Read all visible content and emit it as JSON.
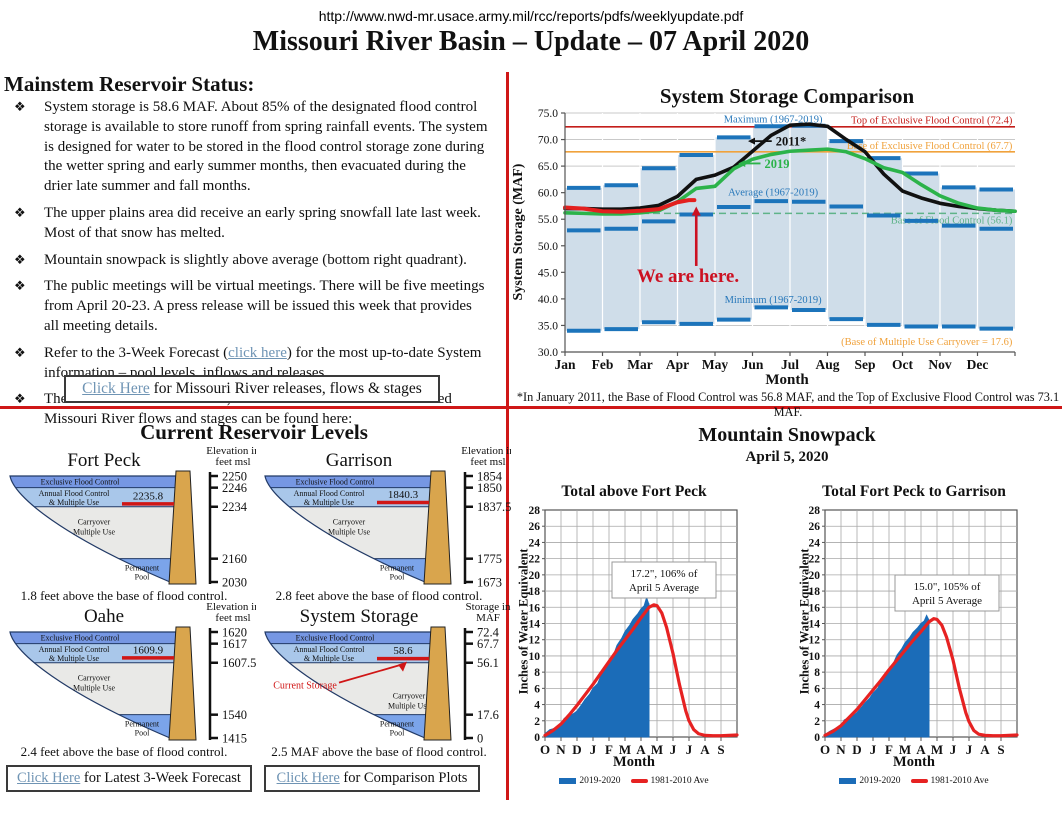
{
  "page": {
    "url": "http://www.nwd-mr.usace.army.mil/rcc/reports/pdfs/weeklyupdate.pdf",
    "title": "Missouri River Basin – Update – 07 April 2020"
  },
  "colors": {
    "divider_red": "#cf1717",
    "link_blue": "#6f94b4",
    "step_blue": "#1c74bb",
    "band_fill": "#cfdde9",
    "line_2011": "#111111",
    "line_2019": "#2cb34a",
    "line_2020": "#e3201f",
    "top_exclusive_red": "#c41e1a",
    "base_exclusive_orange": "#f0a23c",
    "base_flood_green": "#5fb389",
    "snow_blue": "#1b6cb8",
    "snow_red": "#e62222",
    "dam_tan": "#d9a54d"
  },
  "mainstem": {
    "heading": "Mainstem Reservoir Status:",
    "bullet_glyph": "❖",
    "bullets": [
      {
        "pre": "System storage is 58.6 MAF. About 85% of the designated flood control storage is available to store runoff from spring rainfall events. The system is designed for water to be stored in the flood control storage zone during the wetter spring and early summer months, then evacuated during the drier late summer and fall months.",
        "link": "",
        "post": ""
      },
      {
        "pre": "The upper plains area did receive an early spring snowfall late last week.  Most of that snow has melted.",
        "link": "",
        "post": ""
      },
      {
        "pre": "Mountain snowpack is slightly above average (bottom right quadrant).",
        "link": "",
        "post": ""
      },
      {
        "pre": "The public meetings will be virtual meetings.  There will be five meetings from April 20-23.  A press release will be issued this week that provides all meeting details.",
        "link": "",
        "post": ""
      },
      {
        "pre": "Refer to the 3-Week Forecast (",
        "link": "click here",
        "post": ") for the most up-to-date System information – pool levels, inflows and releases."
      },
      {
        "pre": "The Gavins Point release is 35,000 cfs. The schedule and forecasted Missouri River flows and stages can be found here:",
        "link": "",
        "post": ""
      }
    ],
    "release_box": {
      "link": "Click Here",
      "rest": " for Missouri River releases, flows & stages"
    }
  },
  "reservoir_section": {
    "heading": "Current Reservoir Levels",
    "zone_labels": [
      [
        "Exclusive Flood Control"
      ],
      [
        "Annual Flood Control",
        "& Multiple Use"
      ],
      [
        "Carryover",
        "Multiple Use"
      ],
      [
        "Permanent",
        "Pool"
      ]
    ],
    "reservoirs": [
      {
        "name": "Fort Peck",
        "scale_header": [
          "Elevation in",
          "feet msl"
        ],
        "ticks": [
          "2250",
          "2246",
          "2234",
          "2160",
          "2030"
        ],
        "tick_values": [
          2250,
          2246,
          2234,
          2160,
          2030
        ],
        "current_value": 2235.8,
        "current": "2235.8",
        "caption": "1.8 feet above the base of flood control."
      },
      {
        "name": "Garrison",
        "scale_header": [
          "Elevation in",
          "feet msl"
        ],
        "ticks": [
          "1854",
          "1850",
          "1837.5",
          "1775",
          "1673"
        ],
        "tick_values": [
          1854,
          1850,
          1837.5,
          1775,
          1673
        ],
        "current_value": 1840.3,
        "current": "1840.3",
        "caption": "2.8 feet above the base of flood control."
      },
      {
        "name": "Oahe",
        "scale_header": [
          "Elevation in",
          "feet msl"
        ],
        "ticks": [
          "1620",
          "1617",
          "1607.5",
          "1540",
          "1415"
        ],
        "tick_values": [
          1620,
          1617,
          1607.5,
          1540,
          1415
        ],
        "current_value": 1609.9,
        "current": "1609.9",
        "caption": "2.4 feet above the base of flood control."
      },
      {
        "name": "System Storage",
        "scale_header": [
          "Storage in",
          "MAF"
        ],
        "ticks": [
          "72.4",
          "67.7",
          "56.1",
          "17.6",
          "0"
        ],
        "tick_values": [
          72.4,
          67.7,
          56.1,
          17.6,
          0
        ],
        "current_value": 58.6,
        "current": "58.6",
        "current_label": "Current Storage",
        "carryover_right": true,
        "caption": "2.5 MAF above the base of flood control."
      }
    ],
    "buttons": [
      {
        "link": "Click Here",
        "rest": " for Latest 3-Week Forecast"
      },
      {
        "link": "Click Here",
        "rest": " for Comparison Plots"
      }
    ]
  },
  "snowpack_section": {
    "heading": "Mountain Snowpack",
    "date": "April 5, 2020"
  },
  "chart_data": [
    {
      "id": "system-storage-comparison",
      "type": "line",
      "title": "System Storage Comparison",
      "xlabel": "Month",
      "ylabel": "System Storage (MAF)",
      "ylim": [
        30,
        75
      ],
      "ytick_step": 5,
      "grid": true,
      "months": [
        "Jan",
        "Feb",
        "Mar",
        "Apr",
        "May",
        "Jun",
        "Jul",
        "Aug",
        "Sep",
        "Oct",
        "Nov",
        "Dec"
      ],
      "band_fill": "#cfdde9",
      "step_color": "#1c74bb",
      "step_label_color": "#2878ba",
      "step_series": [
        {
          "name": "Maximum (1967-2019)",
          "values": [
            60.9,
            61.4,
            64.6,
            67.1,
            70.4,
            72.5,
            72.6,
            69.7,
            66.5,
            63.6,
            61.0,
            60.6
          ],
          "label_pos": [
            5.55,
            73.9
          ]
        },
        {
          "name": "Average (1967-2019)",
          "values": [
            52.9,
            53.2,
            54.6,
            55.9,
            57.3,
            58.4,
            58.3,
            57.4,
            55.7,
            54.7,
            53.8,
            53.2
          ],
          "label_pos": [
            5.55,
            60.1
          ]
        },
        {
          "name": "Minimum (1967-2019)",
          "values": [
            34.0,
            34.3,
            35.6,
            35.3,
            36.1,
            38.4,
            37.9,
            36.2,
            35.1,
            34.8,
            34.8,
            34.4
          ],
          "label_pos": [
            5.55,
            39.9
          ]
        }
      ],
      "ref_lines": [
        {
          "label": "Top of Exclusive Flood Control (72.4)",
          "value": 72.4,
          "color": "#c41e1a",
          "style": "solid",
          "label_xy": [
            11.93,
            73.7
          ]
        },
        {
          "label": "Base of Exclusive Flood Control (67.7)",
          "value": 67.7,
          "color": "#f0a23c",
          "style": "solid",
          "label_xy": [
            11.93,
            68.9
          ]
        },
        {
          "label": "Base of Flood Control (56.1)",
          "value": 56.1,
          "color": "#5fb389",
          "style": "dashed",
          "label_xy": [
            11.93,
            54.9
          ]
        }
      ],
      "curves": [
        {
          "name": "2011*",
          "color": "#111111",
          "width": 3.6,
          "label_pos": [
            5.62,
            69.6
          ],
          "arrow_to": [
            4.88,
            69.7
          ],
          "x": [
            0,
            0.5,
            1,
            1.5,
            2,
            2.5,
            3,
            3.5,
            4,
            4.5,
            5,
            5.5,
            6,
            6.5,
            7,
            7.5,
            8,
            8.5,
            9,
            9.5,
            10,
            10.5,
            11,
            11.5,
            12
          ],
          "y": [
            57.0,
            57.0,
            56.9,
            56.9,
            57.1,
            57.6,
            59.3,
            62.5,
            63.3,
            64.8,
            67.8,
            70.8,
            72.7,
            72.9,
            72.5,
            70.0,
            67.7,
            63.5,
            60.3,
            59.0,
            58.0,
            57.4,
            57.0,
            56.7,
            56.5
          ]
        },
        {
          "name": "2019",
          "color": "#2cb34a",
          "width": 3.6,
          "label_pos": [
            5.32,
            65.4
          ],
          "arrow_to": [
            4.62,
            65.5
          ],
          "x": [
            0,
            0.5,
            1,
            1.5,
            2,
            2.5,
            3,
            3.5,
            4,
            4.5,
            5,
            5.5,
            6,
            6.5,
            7,
            7.5,
            8,
            8.5,
            9,
            9.5,
            10,
            10.5,
            11,
            11.5,
            12
          ],
          "y": [
            56.2,
            56.1,
            56.0,
            56.0,
            56.2,
            56.6,
            58.3,
            60.8,
            61.2,
            64.5,
            66.3,
            67.2,
            67.8,
            68.0,
            68.2,
            67.7,
            66.4,
            64.7,
            63.8,
            61.5,
            59.4,
            58.0,
            57.1,
            56.7,
            56.5
          ]
        },
        {
          "name": "2020",
          "color": "#e3201f",
          "width": 4,
          "x": [
            0,
            0.5,
            1,
            1.5,
            2,
            2.5,
            3,
            3.3,
            3.45
          ],
          "y": [
            57.2,
            57.0,
            56.5,
            56.4,
            56.6,
            56.9,
            58.2,
            58.6,
            58.6
          ]
        }
      ],
      "annotation": {
        "text": "We are here.",
        "text_xy": [
          3.28,
          43.2
        ],
        "arrow_from": [
          3.5,
          46.2
        ],
        "arrow_to": [
          3.5,
          57.4
        ],
        "color": "#cc1122"
      },
      "corner_note": {
        "text": "(Base of Multiple Use Carryover = 17.6)",
        "xy": [
          11.93,
          31.3
        ],
        "color": "#f0a23c"
      },
      "footnote": "*In January 2011, the Base of Flood Control was 56.8 MAF, and the Top of Exclusive Flood Control was 73.1 MAF."
    },
    {
      "id": "snow-fort-peck",
      "type": "area",
      "title": "Total above Fort Peck",
      "xlabel": "Month",
      "ylabel": "Inches of Water Equivalent",
      "ylim": [
        0,
        28
      ],
      "ytick_step": 2,
      "grid": true,
      "month_letters": [
        "O",
        "N",
        "D",
        "J",
        "F",
        "M",
        "A",
        "M",
        "J",
        "J",
        "A",
        "S"
      ],
      "annotation": [
        "17.2\", 106% of",
        "April 5 Average"
      ],
      "annotation_box": {
        "x": 93,
        "y": 57
      },
      "series": [
        {
          "name": "2019-2020",
          "kind": "area",
          "color": "#1b6cb8",
          "x": [
            0,
            0.3,
            0.5,
            0.7,
            1,
            1.2,
            1.5,
            1.8,
            2,
            2.3,
            2.5,
            2.8,
            3,
            3.3,
            3.5,
            3.8,
            4,
            4.3,
            4.5,
            4.8,
            5,
            5.3,
            5.5,
            5.8,
            6,
            6.2,
            6.35,
            6.45,
            6.5
          ],
          "y": [
            0.4,
            0.9,
            1.0,
            1.2,
            1.4,
            2.3,
            2.6,
            2.9,
            3.2,
            4.0,
            4.6,
            5.3,
            6.0,
            6.6,
            7.6,
            8.4,
            9.2,
            10.2,
            11.3,
            12.2,
            13.0,
            13.8,
            14.5,
            15.2,
            15.8,
            16.2,
            17.2,
            16.6,
            16.4
          ]
        },
        {
          "name": "1981-2010 Ave",
          "kind": "line",
          "color": "#e62222",
          "x": [
            0,
            0.5,
            1,
            1.5,
            2,
            2.5,
            3,
            3.5,
            4,
            4.5,
            5,
            5.5,
            6,
            6.5,
            6.8,
            7,
            7.3,
            7.6,
            8,
            8.4,
            8.8,
            9,
            9.3,
            9.6,
            10,
            10.5,
            11,
            11.5,
            12
          ],
          "y": [
            0.2,
            0.8,
            1.6,
            2.7,
            3.9,
            5.2,
            6.5,
            7.9,
            9.3,
            10.7,
            12.0,
            13.3,
            14.7,
            16.0,
            16.3,
            16.2,
            15.3,
            13.5,
            10.3,
            6.5,
            3.2,
            2.0,
            0.9,
            0.4,
            0.2,
            0.15,
            0.15,
            0.2,
            0.25
          ]
        }
      ],
      "legend": [
        "2019-2020",
        "1981-2010 Ave"
      ]
    },
    {
      "id": "snow-fort-peck-garrison",
      "type": "area",
      "title": "Total Fort Peck to Garrison",
      "xlabel": "Month",
      "ylabel": "Inches of Water Equivalent",
      "ylim": [
        0,
        28
      ],
      "ytick_step": 2,
      "grid": true,
      "month_letters": [
        "O",
        "N",
        "D",
        "J",
        "F",
        "M",
        "A",
        "M",
        "J",
        "J",
        "A",
        "S"
      ],
      "annotation": [
        "15.0\", 105% of",
        "April 5 Average"
      ],
      "annotation_box": {
        "x": 96,
        "y": 70
      },
      "series": [
        {
          "name": "2019-2020",
          "kind": "area",
          "color": "#1b6cb8",
          "x": [
            0,
            0.3,
            0.5,
            0.7,
            1,
            1.2,
            1.5,
            1.8,
            2,
            2.3,
            2.5,
            2.8,
            3,
            3.3,
            3.5,
            3.8,
            4,
            4.3,
            4.5,
            4.8,
            5,
            5.3,
            5.5,
            5.8,
            6,
            6.2,
            6.35,
            6.45,
            6.5
          ],
          "y": [
            0.3,
            0.7,
            0.9,
            1.1,
            1.3,
            2.1,
            2.4,
            2.7,
            3.0,
            3.7,
            4.2,
            4.8,
            5.4,
            6.0,
            6.9,
            7.6,
            8.3,
            9.2,
            10.1,
            10.9,
            11.6,
            12.3,
            12.9,
            13.5,
            14.0,
            14.3,
            15.0,
            14.6,
            14.4
          ]
        },
        {
          "name": "1981-2010 Ave",
          "kind": "line",
          "color": "#e62222",
          "x": [
            0,
            0.5,
            1,
            1.5,
            2,
            2.5,
            3,
            3.5,
            4,
            4.5,
            5,
            5.5,
            6,
            6.5,
            6.8,
            7,
            7.3,
            7.6,
            8,
            8.4,
            8.8,
            9,
            9.3,
            9.6,
            10,
            10.5,
            11,
            11.5,
            12
          ],
          "y": [
            0.2,
            0.7,
            1.4,
            2.4,
            3.4,
            4.6,
            5.8,
            7.0,
            8.3,
            9.5,
            10.7,
            11.9,
            13.0,
            14.2,
            14.6,
            14.5,
            13.8,
            12.3,
            9.5,
            6.0,
            3.0,
            1.9,
            0.8,
            0.35,
            0.2,
            0.15,
            0.15,
            0.2,
            0.25
          ]
        }
      ],
      "legend": [
        "2019-2020",
        "1981-2010 Ave"
      ]
    }
  ]
}
